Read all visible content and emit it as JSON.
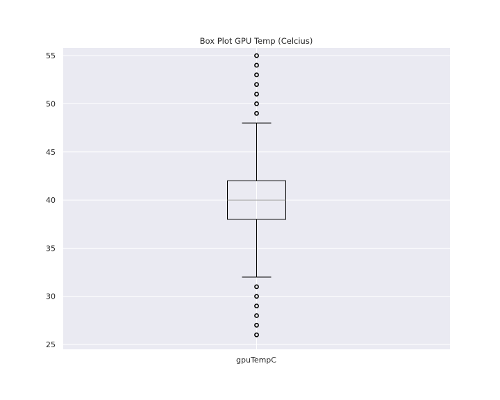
{
  "chart_data": {
    "type": "box",
    "title": "Box Plot GPU Temp (Celcius)",
    "categories": [
      "gpuTempC"
    ],
    "ylim": [
      24.5,
      55.8
    ],
    "yticks": [
      25,
      30,
      35,
      40,
      45,
      50,
      55
    ],
    "grid": true,
    "boxes": [
      {
        "category": "gpuTempC",
        "whisker_low": 32,
        "q1": 38,
        "median": 40,
        "q3": 42,
        "whisker_high": 48,
        "outliers": [
          26,
          27,
          28,
          29,
          30,
          31,
          49,
          50,
          51,
          52,
          53,
          54,
          55
        ]
      }
    ],
    "colors": {
      "plot_background": "#EAEAF2",
      "grid": "#FFFFFF",
      "box": "#000000",
      "median": "#9E9E9E",
      "outlier_edge": "#000000"
    }
  }
}
